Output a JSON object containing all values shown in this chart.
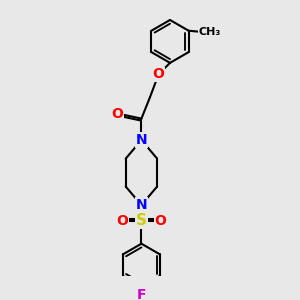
{
  "bg_color": "#e8e8e8",
  "bond_color": "#000000",
  "bond_width": 1.5,
  "atom_colors": {
    "O": "#ff0000",
    "N": "#0000ff",
    "S": "#cccc00",
    "F": "#cc00cc",
    "C": "#000000"
  },
  "font_size": 10,
  "fig_size": [
    3.0,
    3.0
  ],
  "dpi": 100,
  "xlim": [
    -2.5,
    2.5
  ],
  "ylim": [
    -4.8,
    4.8
  ]
}
